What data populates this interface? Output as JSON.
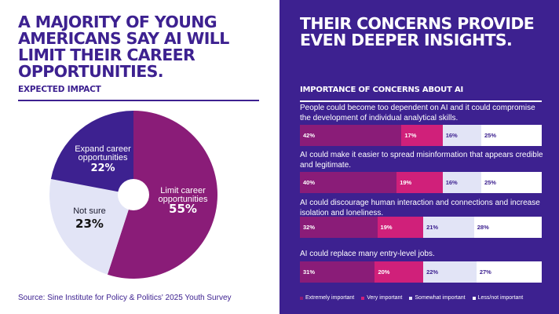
{
  "left": {
    "title": "A majority of young Americans say AI will limit their career opportunities.",
    "subtitle": "EXPECTED IMPACT",
    "source": "Source: Sine Institute for Policy & Politics' 2025 Youth Survey"
  },
  "right": {
    "title": "Their concerns provide even deeper insights.",
    "subtitle": "IMPORTANCE OF CONCERNS ABOUT AI"
  },
  "chart_data": [
    {
      "type": "pie",
      "title": "EXPECTED IMPACT",
      "slices": [
        {
          "label": "Limit career opportunities",
          "value": 55,
          "value_label": "55%",
          "color": "#8a1c78"
        },
        {
          "label": "Not sure",
          "value": 23,
          "value_label": "23%",
          "color": "#e2e4f6"
        },
        {
          "label": "Expand career opportunities",
          "value": 22,
          "value_label": "22%",
          "color": "#3d2190"
        }
      ]
    },
    {
      "type": "bar",
      "orientation": "horizontal",
      "stacked": true,
      "title": "IMPORTANCE OF CONCERNS ABOUT AI",
      "categories": [
        "People could become too dependent on AI and it could compromise the development of individual analytical skills.",
        "AI could make it easier to spread misinformation that appears credible and legitimate.",
        "AI could discourage human interaction and connections and increase isolation and loneliness.",
        "AI could replace many entry-level jobs."
      ],
      "series": [
        {
          "name": "Extremely important",
          "color": "#8a1c78",
          "values": [
            42,
            40,
            32,
            31
          ]
        },
        {
          "name": "Very important",
          "color": "#d0207a",
          "values": [
            17,
            19,
            19,
            20
          ]
        },
        {
          "name": "Somewhat important",
          "color": "#e2e4f6",
          "values": [
            16,
            16,
            21,
            22
          ]
        },
        {
          "name": "Less/not important",
          "color": "#ffffff",
          "values": [
            25,
            25,
            28,
            27
          ]
        }
      ],
      "legend": [
        "Extremely important",
        "Very important",
        "Somewhat important",
        "Less/not important"
      ]
    }
  ]
}
